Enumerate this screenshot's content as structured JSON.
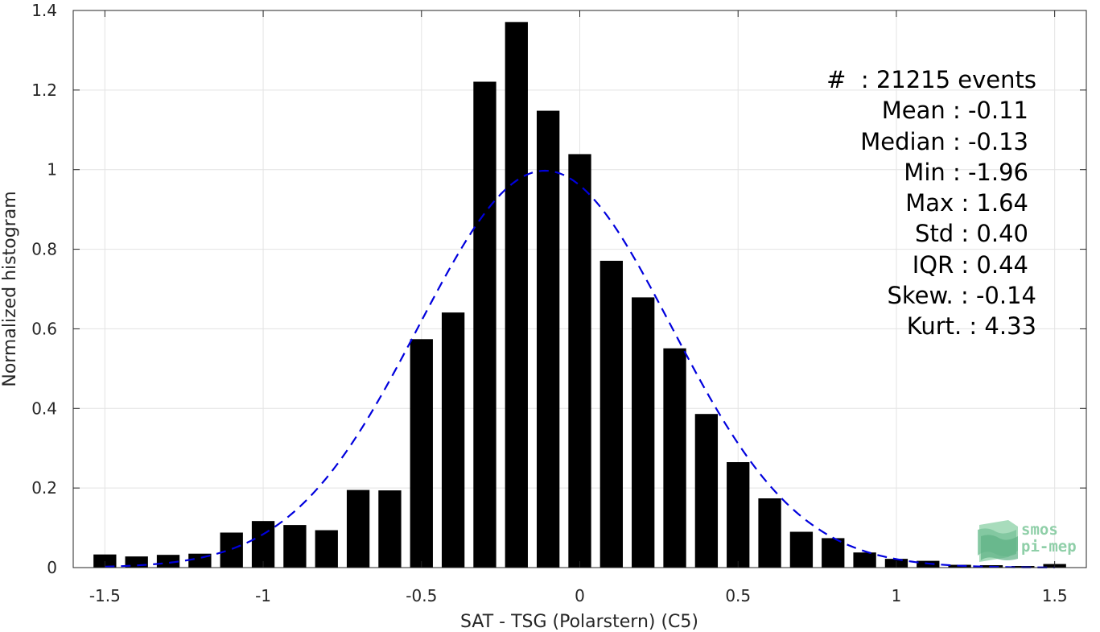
{
  "chart_data": {
    "type": "bar",
    "xlabel": "SAT - TSG (Polarstern) (C5)",
    "ylabel": "Normalized histogram",
    "xlim": [
      -1.6,
      1.6
    ],
    "ylim": [
      0,
      1.4
    ],
    "xticks": [
      -1.5,
      -1,
      -0.5,
      0,
      0.5,
      1,
      1.5
    ],
    "xtick_labels": [
      "-1.5",
      "-1",
      "-0.5",
      "0",
      "0.5",
      "1",
      "1.5"
    ],
    "yticks": [
      0,
      0.2,
      0.4,
      0.6,
      0.8,
      1,
      1.2,
      1.4
    ],
    "ytick_labels": [
      "0",
      "0.2",
      "0.4",
      "0.6",
      "0.8",
      "1",
      "1.2",
      "1.4"
    ],
    "grid": true,
    "bar_color": "#000000",
    "bin_width": 0.1,
    "bins": [
      {
        "x": -1.5,
        "y": 0.033
      },
      {
        "x": -1.4,
        "y": 0.028
      },
      {
        "x": -1.3,
        "y": 0.032
      },
      {
        "x": -1.2,
        "y": 0.035
      },
      {
        "x": -1.1,
        "y": 0.088
      },
      {
        "x": -1.0,
        "y": 0.117
      },
      {
        "x": -0.9,
        "y": 0.107
      },
      {
        "x": -0.8,
        "y": 0.094
      },
      {
        "x": -0.7,
        "y": 0.195
      },
      {
        "x": -0.6,
        "y": 0.194
      },
      {
        "x": -0.5,
        "y": 0.574
      },
      {
        "x": -0.4,
        "y": 0.641
      },
      {
        "x": -0.3,
        "y": 1.221
      },
      {
        "x": -0.2,
        "y": 1.371
      },
      {
        "x": -0.1,
        "y": 1.148
      },
      {
        "x": 0.0,
        "y": 1.039
      },
      {
        "x": 0.1,
        "y": 0.771
      },
      {
        "x": 0.2,
        "y": 0.679
      },
      {
        "x": 0.3,
        "y": 0.551
      },
      {
        "x": 0.4,
        "y": 0.386
      },
      {
        "x": 0.5,
        "y": 0.265
      },
      {
        "x": 0.6,
        "y": 0.174
      },
      {
        "x": 0.7,
        "y": 0.09
      },
      {
        "x": 0.8,
        "y": 0.074
      },
      {
        "x": 0.9,
        "y": 0.038
      },
      {
        "x": 1.0,
        "y": 0.022
      },
      {
        "x": 1.1,
        "y": 0.017
      },
      {
        "x": 1.2,
        "y": 0.007
      },
      {
        "x": 1.3,
        "y": 0.006
      },
      {
        "x": 1.4,
        "y": 0.004
      },
      {
        "x": 1.5,
        "y": 0.009
      }
    ],
    "fit_curve": {
      "type": "gaussian",
      "mean": -0.11,
      "std": 0.4,
      "x_range": [
        -1.5,
        1.5
      ],
      "color": "#0000dd",
      "style": "dashed"
    }
  },
  "stats": {
    "count": "#  : 21215 events",
    "mean": "Mean : -0.11",
    "median": "Median : -0.13",
    "min": "Min : -1.96",
    "max": "Max : 1.64",
    "std": "Std : 0.40",
    "iqr": "IQR : 0.44",
    "skew": "Skew. : -0.14",
    "kurt": "Kurt. : 4.33"
  },
  "logo": {
    "line1": "smos",
    "line2": "pi-mep",
    "icon": "wave-sheets-icon",
    "color": "#8fcfa8"
  }
}
